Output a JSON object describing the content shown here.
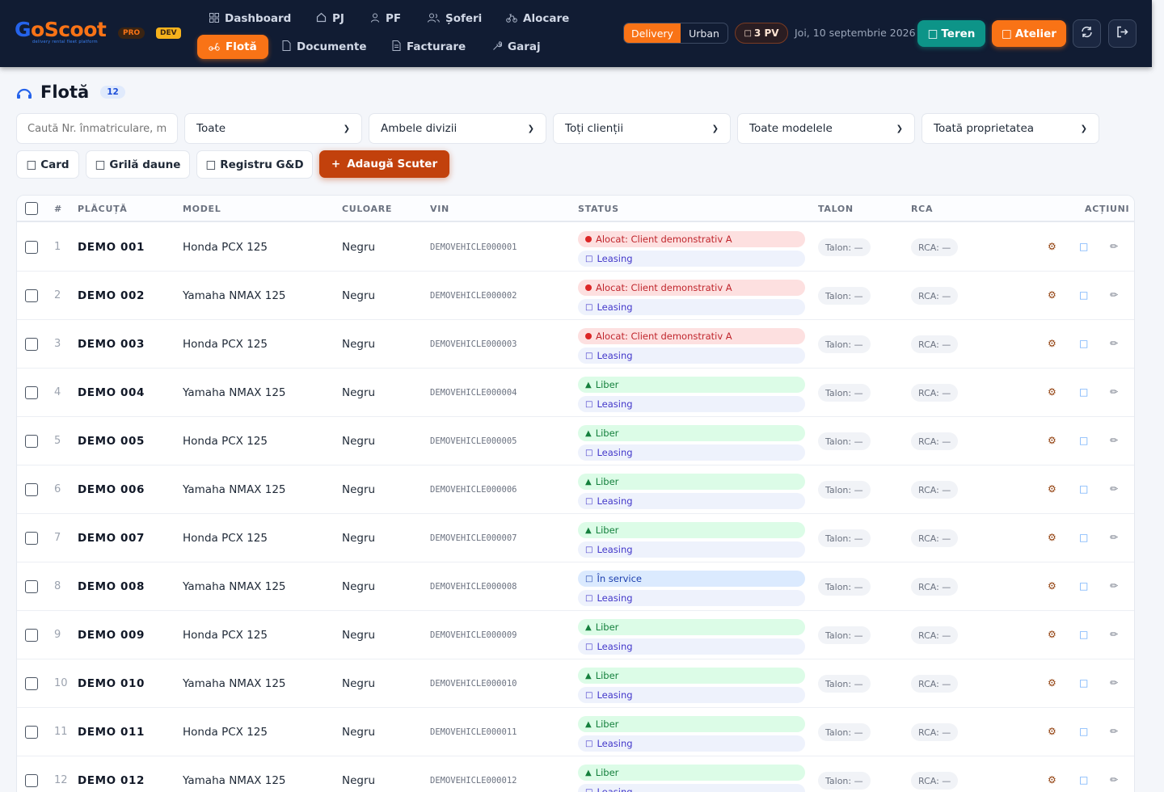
{
  "header": {
    "logo_a": "G",
    "logo_b": "o",
    "logo_c": "Scoot",
    "logo_tagline": "delivery rental fleet platform",
    "badge_pro": "PRO",
    "badge_dev": "DEV",
    "nav_row1": [
      {
        "label": "Dashboard",
        "icon": "grid-icon"
      },
      {
        "label": "PJ",
        "icon": "home-icon"
      },
      {
        "label": "PF",
        "icon": "user-icon"
      },
      {
        "label": "Șoferi",
        "icon": "users-icon"
      },
      {
        "label": "Alocare",
        "icon": "bike-icon"
      }
    ],
    "nav_row2": [
      {
        "label": "Flotă",
        "icon": "scooter-icon",
        "active": true
      },
      {
        "label": "Documente",
        "icon": "file-icon"
      },
      {
        "label": "Facturare",
        "icon": "invoice-icon"
      },
      {
        "label": "Garaj",
        "icon": "wrench-icon"
      }
    ],
    "division_toggle": [
      "Delivery",
      "Urban"
    ],
    "pv_badge": "3 PV",
    "date": "Joi, 10 septembrie 2026",
    "teren_label": "Teren",
    "atelier_label": "Atelier",
    "icons": [
      "refresh-icon",
      "logout-icon"
    ]
  },
  "page": {
    "title": "Flotă",
    "count": "12"
  },
  "filters": {
    "search_placeholder": "Caută Nr. înmatriculare, model, VIN…",
    "status": "Toate",
    "division": "Ambele divizii",
    "clients": "Toți clienții",
    "models": "Toate modelele",
    "ownership": "Toată proprietatea"
  },
  "actions": {
    "card": "Card",
    "grila": "Grilă daune",
    "registru": "Registru G&D",
    "add": "Adaugă Scuter",
    "add_icon": "+"
  },
  "table": {
    "columns": [
      "#",
      "PLĂCUȚĂ",
      "MODEL",
      "CULOARE",
      "VIN",
      "STATUS",
      "TALON",
      "RCA",
      "ACȚIUNI"
    ],
    "rows": [
      {
        "n": "1",
        "plate": "DEMO 001",
        "model": "Honda PCX 125",
        "color": "Negru",
        "vin": "DEMOVEHICLE000001",
        "status": "Alocat: Client demonstrativ A",
        "status_type": "alloc",
        "ownership": "Leasing",
        "talon": "Talon: —",
        "rca": "RCA: —"
      },
      {
        "n": "2",
        "plate": "DEMO 002",
        "model": "Yamaha NMAX 125",
        "color": "Negru",
        "vin": "DEMOVEHICLE000002",
        "status": "Alocat: Client demonstrativ A",
        "status_type": "alloc",
        "ownership": "Leasing",
        "talon": "Talon: —",
        "rca": "RCA: —"
      },
      {
        "n": "3",
        "plate": "DEMO 003",
        "model": "Honda PCX 125",
        "color": "Negru",
        "vin": "DEMOVEHICLE000003",
        "status": "Alocat: Client demonstrativ A",
        "status_type": "alloc",
        "ownership": "Leasing",
        "talon": "Talon: —",
        "rca": "RCA: —"
      },
      {
        "n": "4",
        "plate": "DEMO 004",
        "model": "Yamaha NMAX 125",
        "color": "Negru",
        "vin": "DEMOVEHICLE000004",
        "status": "Liber",
        "status_type": "free",
        "ownership": "Leasing",
        "talon": "Talon: —",
        "rca": "RCA: —"
      },
      {
        "n": "5",
        "plate": "DEMO 005",
        "model": "Honda PCX 125",
        "color": "Negru",
        "vin": "DEMOVEHICLE000005",
        "status": "Liber",
        "status_type": "free",
        "ownership": "Leasing",
        "talon": "Talon: —",
        "rca": "RCA: —"
      },
      {
        "n": "6",
        "plate": "DEMO 006",
        "model": "Yamaha NMAX 125",
        "color": "Negru",
        "vin": "DEMOVEHICLE000006",
        "status": "Liber",
        "status_type": "free",
        "ownership": "Leasing",
        "talon": "Talon: —",
        "rca": "RCA: —"
      },
      {
        "n": "7",
        "plate": "DEMO 007",
        "model": "Honda PCX 125",
        "color": "Negru",
        "vin": "DEMOVEHICLE000007",
        "status": "Liber",
        "status_type": "free",
        "ownership": "Leasing",
        "talon": "Talon: —",
        "rca": "RCA: —"
      },
      {
        "n": "8",
        "plate": "DEMO 008",
        "model": "Yamaha NMAX 125",
        "color": "Negru",
        "vin": "DEMOVEHICLE000008",
        "status": "În service",
        "status_type": "service",
        "ownership": "Leasing",
        "talon": "Talon: —",
        "rca": "RCA: —"
      },
      {
        "n": "9",
        "plate": "DEMO 009",
        "model": "Honda PCX 125",
        "color": "Negru",
        "vin": "DEMOVEHICLE000009",
        "status": "Liber",
        "status_type": "free",
        "ownership": "Leasing",
        "talon": "Talon: —",
        "rca": "RCA: —"
      },
      {
        "n": "10",
        "plate": "DEMO 010",
        "model": "Yamaha NMAX 125",
        "color": "Negru",
        "vin": "DEMOVEHICLE000010",
        "status": "Liber",
        "status_type": "free",
        "ownership": "Leasing",
        "talon": "Talon: —",
        "rca": "RCA: —"
      },
      {
        "n": "11",
        "plate": "DEMO 011",
        "model": "Honda PCX 125",
        "color": "Negru",
        "vin": "DEMOVEHICLE000011",
        "status": "Liber",
        "status_type": "free",
        "ownership": "Leasing",
        "talon": "Talon: —",
        "rca": "RCA: —"
      },
      {
        "n": "12",
        "plate": "DEMO 012",
        "model": "Yamaha NMAX 125",
        "color": "Negru",
        "vin": "DEMOVEHICLE000012",
        "status": "Liber",
        "status_type": "free",
        "ownership": "Leasing",
        "talon": "Talon: —",
        "rca": "RCA: —"
      }
    ],
    "row_actions": [
      "gear-icon",
      "document-icon",
      "pencil-icon"
    ]
  },
  "colors": {
    "brand_orange": "#f97316",
    "brand_blue": "#2563eb",
    "teal": "#0d9488",
    "header_bg": "#111c33"
  }
}
